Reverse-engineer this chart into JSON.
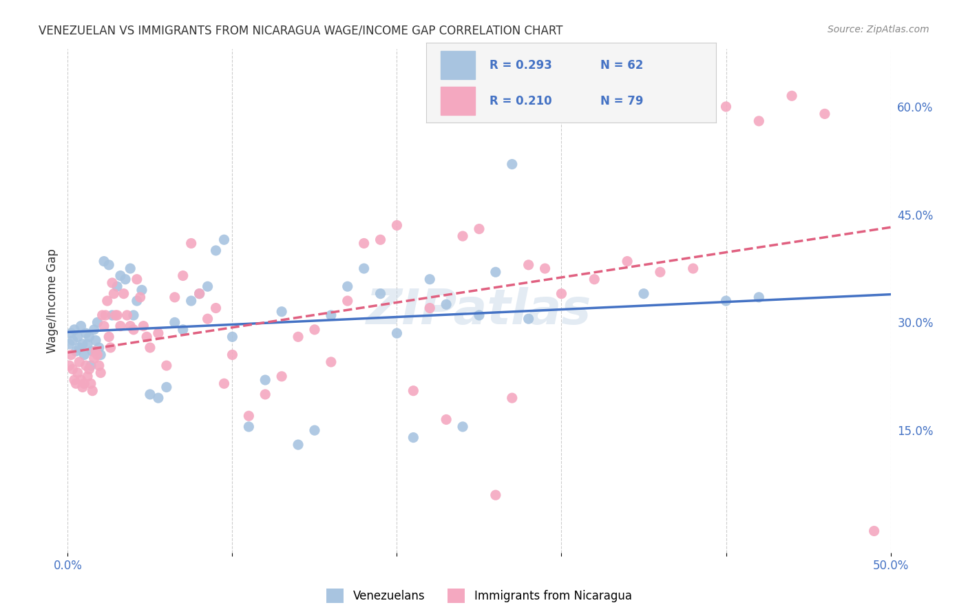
{
  "title": "VENEZUELAN VS IMMIGRANTS FROM NICARAGUA WAGE/INCOME GAP CORRELATION CHART",
  "source": "Source: ZipAtlas.com",
  "xlabel_bottom": "",
  "ylabel": "Wage/Income Gap",
  "xlim": [
    0.0,
    0.5
  ],
  "ylim": [
    -0.02,
    0.68
  ],
  "xticks": [
    0.0,
    0.1,
    0.2,
    0.3,
    0.4,
    0.5
  ],
  "xticklabels": [
    "0.0%",
    "",
    "",
    "",
    "",
    "50.0%"
  ],
  "yticks_right": [
    0.15,
    0.3,
    0.45,
    0.6
  ],
  "ytick_right_labels": [
    "15.0%",
    "30.0%",
    "45.0%",
    "60.0%"
  ],
  "watermark": "ZIPatlas",
  "legend_R1": "R = 0.293",
  "legend_N1": "N = 62",
  "legend_R2": "R = 0.210",
  "legend_N2": "N = 79",
  "color_venezuelan": "#a8c4e0",
  "color_nicaragua": "#f4a8c0",
  "color_line_venezuelan": "#4472c4",
  "color_line_nicaragua": "#e06080",
  "legend_label1": "Venezuelans",
  "legend_label2": "Immigrants from Nicaragua",
  "venezuelan_x": [
    0.001,
    0.002,
    0.003,
    0.004,
    0.005,
    0.006,
    0.007,
    0.008,
    0.009,
    0.01,
    0.011,
    0.012,
    0.013,
    0.014,
    0.015,
    0.016,
    0.017,
    0.018,
    0.019,
    0.02,
    0.022,
    0.025,
    0.027,
    0.03,
    0.032,
    0.035,
    0.038,
    0.04,
    0.042,
    0.045,
    0.05,
    0.055,
    0.06,
    0.065,
    0.07,
    0.075,
    0.08,
    0.085,
    0.09,
    0.095,
    0.1,
    0.11,
    0.12,
    0.13,
    0.14,
    0.15,
    0.16,
    0.17,
    0.18,
    0.19,
    0.2,
    0.21,
    0.22,
    0.23,
    0.24,
    0.25,
    0.26,
    0.27,
    0.28,
    0.35,
    0.4,
    0.42
  ],
  "venezuelan_y": [
    0.27,
    0.285,
    0.275,
    0.29,
    0.26,
    0.28,
    0.265,
    0.295,
    0.27,
    0.255,
    0.285,
    0.27,
    0.28,
    0.24,
    0.26,
    0.29,
    0.275,
    0.3,
    0.265,
    0.255,
    0.385,
    0.38,
    0.31,
    0.35,
    0.365,
    0.36,
    0.375,
    0.31,
    0.33,
    0.345,
    0.2,
    0.195,
    0.21,
    0.3,
    0.29,
    0.33,
    0.34,
    0.35,
    0.4,
    0.415,
    0.28,
    0.155,
    0.22,
    0.315,
    0.13,
    0.15,
    0.31,
    0.35,
    0.375,
    0.34,
    0.285,
    0.14,
    0.36,
    0.325,
    0.155,
    0.31,
    0.37,
    0.52,
    0.305,
    0.34,
    0.33,
    0.335
  ],
  "nicaragua_x": [
    0.001,
    0.002,
    0.003,
    0.004,
    0.005,
    0.006,
    0.007,
    0.008,
    0.009,
    0.01,
    0.011,
    0.012,
    0.013,
    0.014,
    0.015,
    0.016,
    0.017,
    0.018,
    0.019,
    0.02,
    0.021,
    0.022,
    0.023,
    0.024,
    0.025,
    0.026,
    0.027,
    0.028,
    0.029,
    0.03,
    0.032,
    0.034,
    0.036,
    0.038,
    0.04,
    0.042,
    0.044,
    0.046,
    0.048,
    0.05,
    0.055,
    0.06,
    0.065,
    0.07,
    0.075,
    0.08,
    0.085,
    0.09,
    0.095,
    0.1,
    0.11,
    0.12,
    0.13,
    0.14,
    0.15,
    0.16,
    0.17,
    0.18,
    0.19,
    0.2,
    0.21,
    0.22,
    0.23,
    0.24,
    0.25,
    0.26,
    0.27,
    0.28,
    0.29,
    0.3,
    0.32,
    0.34,
    0.36,
    0.38,
    0.4,
    0.42,
    0.44,
    0.46,
    0.49
  ],
  "nicaragua_y": [
    0.24,
    0.255,
    0.235,
    0.22,
    0.215,
    0.23,
    0.245,
    0.22,
    0.21,
    0.215,
    0.24,
    0.225,
    0.235,
    0.215,
    0.205,
    0.25,
    0.26,
    0.255,
    0.24,
    0.23,
    0.31,
    0.295,
    0.31,
    0.33,
    0.28,
    0.265,
    0.355,
    0.34,
    0.31,
    0.31,
    0.295,
    0.34,
    0.31,
    0.295,
    0.29,
    0.36,
    0.335,
    0.295,
    0.28,
    0.265,
    0.285,
    0.24,
    0.335,
    0.365,
    0.41,
    0.34,
    0.305,
    0.32,
    0.215,
    0.255,
    0.17,
    0.2,
    0.225,
    0.28,
    0.29,
    0.245,
    0.33,
    0.41,
    0.415,
    0.435,
    0.205,
    0.32,
    0.165,
    0.42,
    0.43,
    0.06,
    0.195,
    0.38,
    0.375,
    0.34,
    0.36,
    0.385,
    0.37,
    0.375,
    0.6,
    0.58,
    0.615,
    0.59,
    0.01
  ]
}
